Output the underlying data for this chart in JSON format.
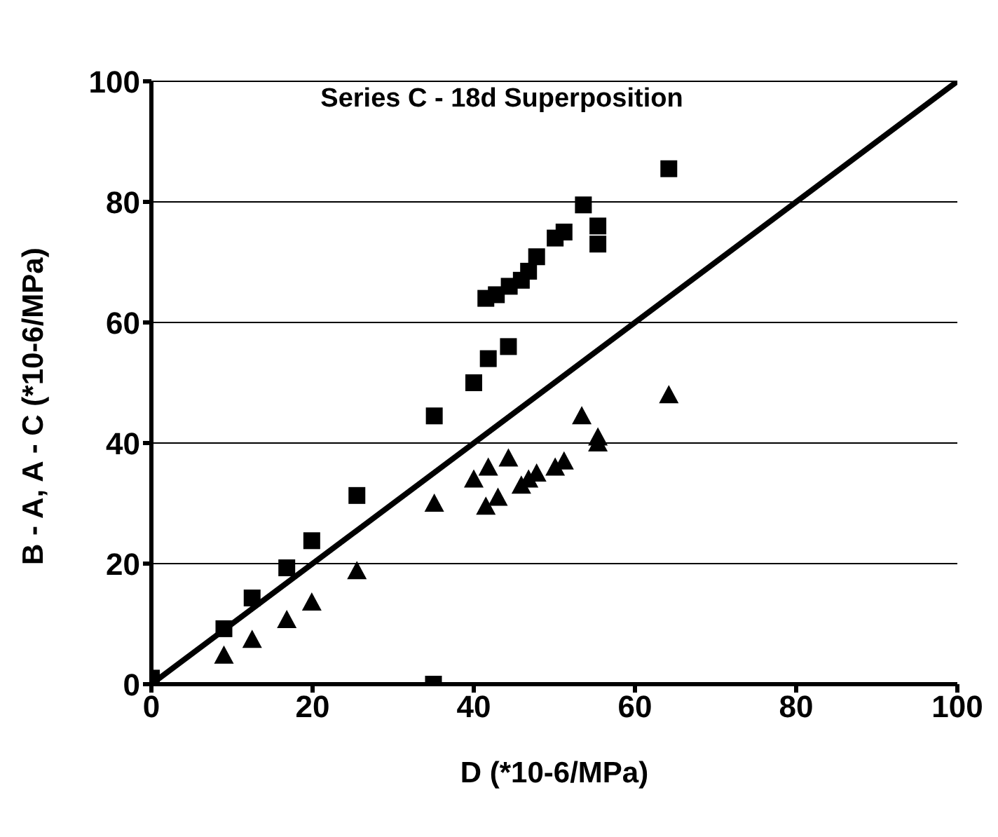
{
  "chart_data": {
    "type": "scatter",
    "title": "Series C - 18d Superposition",
    "xlabel": "D (*10-6/MPa)",
    "ylabel": "B - A, A - C (*10-6/MPa)",
    "xlim": [
      0,
      100
    ],
    "ylim": [
      0,
      100
    ],
    "xticks": [
      0,
      20,
      40,
      60,
      80,
      100
    ],
    "yticks": [
      0,
      20,
      40,
      60,
      80,
      100
    ],
    "grid": "y",
    "legend": false,
    "series": [
      {
        "marker": "square",
        "color": "#000000",
        "x": [
          0,
          9,
          12.5,
          16.8,
          19.9,
          25.5,
          35,
          35.1,
          40,
          41.8,
          44.3,
          41.5,
          42.8,
          44.4,
          45.9,
          46.8,
          47.8,
          50.1,
          51.2,
          53.6,
          55.4,
          55.4,
          64.2
        ],
        "values": [
          1,
          9.2,
          14.3,
          19.3,
          23.8,
          31.3,
          0,
          44.5,
          50,
          54,
          56,
          64,
          64.6,
          66,
          67,
          68.5,
          70.9,
          74,
          75,
          79.5,
          76,
          73,
          85.5
        ]
      },
      {
        "marker": "triangle",
        "color": "#000000",
        "x": [
          9,
          12.5,
          16.8,
          19.9,
          25.5,
          35.1,
          40,
          41.8,
          44.3,
          41.5,
          43,
          45.9,
          46.8,
          47.8,
          50.1,
          51.2,
          53.4,
          55.4,
          55.4,
          64.2
        ],
        "values": [
          4.8,
          7.4,
          10.7,
          13.6,
          18.8,
          30,
          34,
          36,
          37.5,
          29.5,
          31,
          33,
          34,
          35,
          36,
          37,
          44.5,
          41,
          40,
          48
        ]
      },
      {
        "type": "line",
        "marker": "none",
        "color": "#000000",
        "x": [
          0,
          100
        ],
        "values": [
          0,
          100
        ]
      }
    ]
  }
}
